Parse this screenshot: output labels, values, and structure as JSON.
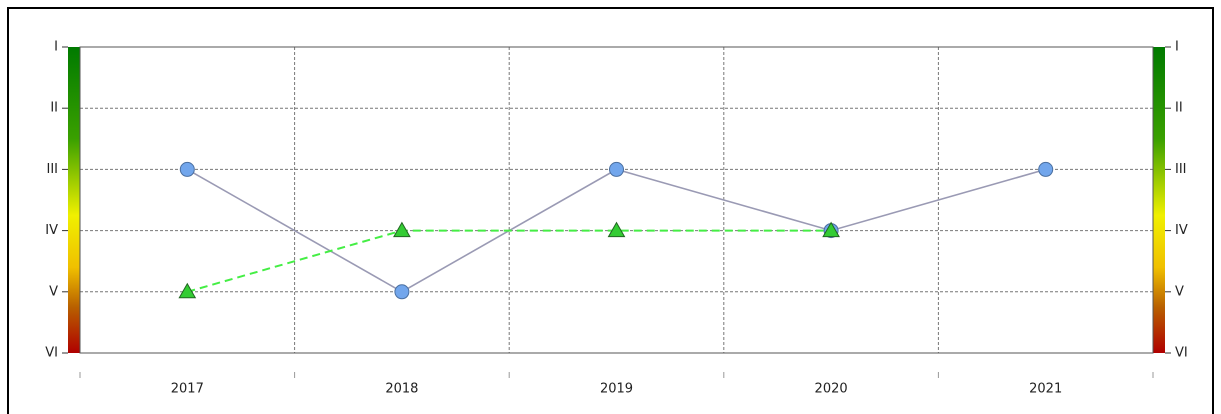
{
  "chart_data": {
    "type": "line",
    "categories": [
      "2017",
      "2018",
      "2019",
      "2020",
      "2021"
    ],
    "series": [
      {
        "color": "#9a9ab4",
        "marker": "circle",
        "marker_color": "#72a6ec",
        "dashed": false,
        "values": [
          3,
          5,
          3,
          4,
          3
        ]
      },
      {
        "color": "#44ee44",
        "marker": "triangle",
        "marker_color": "#33cc33",
        "dashed": true,
        "values": [
          5,
          4,
          4,
          4,
          null
        ]
      }
    ],
    "ylim": [
      6,
      1
    ],
    "yticks": [
      {
        "value": 1,
        "label": "I"
      },
      {
        "value": 2,
        "label": "II"
      },
      {
        "value": 3,
        "label": "III"
      },
      {
        "value": 4,
        "label": "IV"
      },
      {
        "value": 5,
        "label": "V"
      },
      {
        "value": 6,
        "label": "VI"
      }
    ],
    "grid": true
  }
}
